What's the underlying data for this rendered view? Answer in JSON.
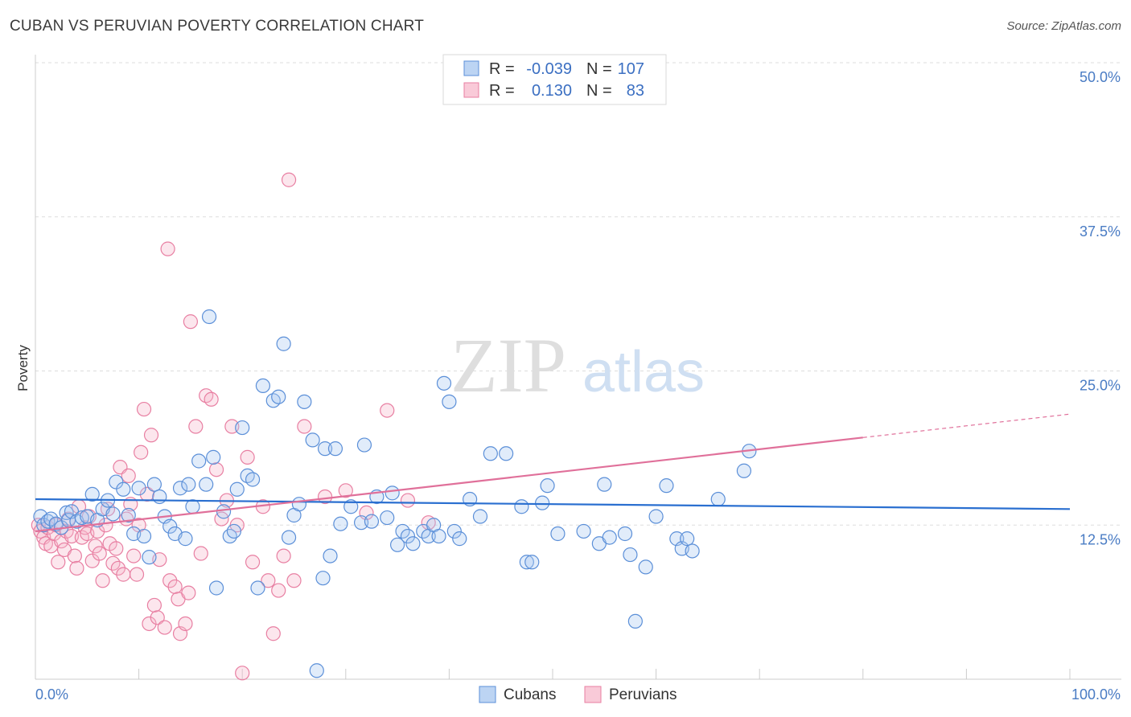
{
  "title": "CUBAN VS PERUVIAN POVERTY CORRELATION CHART",
  "source": "Source: ZipAtlas.com",
  "watermark": {
    "zip": "ZIP",
    "atlas": "atlas"
  },
  "colors": {
    "blue_fill": "#a8c8f0",
    "blue_stroke": "#5b8fd8",
    "blue_line": "#2a6fd0",
    "pink_fill": "#f5b8cb",
    "pink_stroke": "#e87fa2",
    "pink_line": "#e0709a",
    "grid": "#dddddd",
    "tick_label": "#4a7cc4"
  },
  "legend": {
    "rows": [
      {
        "r_label": "R =",
        "r_value": "-0.039",
        "n_label": "N =",
        "n_value": "107",
        "series": "Cubans"
      },
      {
        "r_label": "R =",
        "r_value": "0.130",
        "n_label": "N =",
        "n_value": "83",
        "series": "Peruvians"
      }
    ]
  },
  "chart_data": {
    "type": "scatter",
    "title": "CUBAN VS PERUVIAN POVERTY CORRELATION CHART",
    "xlabel": "",
    "ylabel": "Poverty",
    "xlim": [
      0,
      100
    ],
    "ylim": [
      0,
      50
    ],
    "y_ticks": [
      12.5,
      25.0,
      37.5,
      50.0
    ],
    "y_tick_labels": [
      "12.5%",
      "25.0%",
      "37.5%",
      "50.0%"
    ],
    "x_tick_labels": [
      "0.0%",
      "100.0%"
    ],
    "grid": true,
    "legend_position": "top-center",
    "series": [
      {
        "name": "Cubans",
        "r": -0.039,
        "n": 107,
        "trend": {
          "x": [
            0,
            100
          ],
          "y": [
            14.6,
            13.8
          ]
        },
        "points": [
          [
            0.5,
            13.2
          ],
          [
            0.8,
            12.5
          ],
          [
            1.2,
            12.8
          ],
          [
            1.5,
            13.0
          ],
          [
            2.0,
            12.6
          ],
          [
            2.5,
            12.3
          ],
          [
            3.0,
            13.5
          ],
          [
            3.2,
            12.9
          ],
          [
            3.5,
            13.6
          ],
          [
            4.0,
            12.8
          ],
          [
            4.5,
            13.1
          ],
          [
            5.0,
            13.2
          ],
          [
            5.5,
            15.0
          ],
          [
            6.0,
            12.9
          ],
          [
            6.5,
            13.8
          ],
          [
            7.0,
            14.5
          ],
          [
            7.5,
            13.4
          ],
          [
            7.8,
            16.0
          ],
          [
            8.5,
            15.4
          ],
          [
            9.0,
            13.3
          ],
          [
            9.5,
            11.8
          ],
          [
            10.0,
            15.5
          ],
          [
            10.5,
            11.6
          ],
          [
            11.0,
            9.9
          ],
          [
            11.5,
            15.8
          ],
          [
            12.0,
            14.8
          ],
          [
            12.5,
            13.2
          ],
          [
            13.0,
            12.4
          ],
          [
            13.5,
            11.8
          ],
          [
            14.0,
            15.5
          ],
          [
            14.5,
            11.4
          ],
          [
            14.8,
            15.8
          ],
          [
            15.2,
            14.0
          ],
          [
            15.8,
            17.7
          ],
          [
            16.5,
            15.8
          ],
          [
            16.8,
            29.4
          ],
          [
            17.2,
            18.0
          ],
          [
            17.5,
            7.4
          ],
          [
            18.2,
            13.6
          ],
          [
            18.8,
            11.6
          ],
          [
            19.2,
            12.0
          ],
          [
            19.5,
            15.4
          ],
          [
            20.0,
            20.4
          ],
          [
            20.5,
            16.5
          ],
          [
            21.0,
            16.2
          ],
          [
            21.5,
            7.4
          ],
          [
            22.0,
            23.8
          ],
          [
            23.0,
            22.6
          ],
          [
            23.5,
            22.9
          ],
          [
            24.0,
            27.2
          ],
          [
            24.5,
            11.5
          ],
          [
            25.0,
            13.3
          ],
          [
            25.5,
            14.2
          ],
          [
            26.0,
            22.5
          ],
          [
            26.8,
            19.4
          ],
          [
            27.2,
            0.7
          ],
          [
            27.8,
            8.2
          ],
          [
            28.0,
            18.7
          ],
          [
            28.5,
            10.0
          ],
          [
            29.0,
            18.7
          ],
          [
            29.5,
            12.6
          ],
          [
            30.5,
            14.0
          ],
          [
            31.5,
            12.7
          ],
          [
            31.8,
            19.0
          ],
          [
            32.5,
            12.8
          ],
          [
            33.0,
            14.8
          ],
          [
            34.0,
            13.1
          ],
          [
            34.5,
            15.1
          ],
          [
            35.0,
            10.9
          ],
          [
            35.5,
            12.0
          ],
          [
            36.0,
            11.6
          ],
          [
            36.5,
            11.0
          ],
          [
            37.5,
            12.0
          ],
          [
            38.0,
            11.6
          ],
          [
            38.5,
            12.5
          ],
          [
            39.0,
            11.6
          ],
          [
            39.5,
            24.0
          ],
          [
            40.0,
            22.5
          ],
          [
            40.5,
            12.0
          ],
          [
            41.0,
            11.4
          ],
          [
            42.0,
            14.6
          ],
          [
            43.0,
            13.2
          ],
          [
            44.0,
            18.3
          ],
          [
            45.5,
            18.3
          ],
          [
            47.0,
            14.0
          ],
          [
            47.5,
            9.5
          ],
          [
            48.0,
            9.5
          ],
          [
            49.0,
            14.3
          ],
          [
            49.5,
            15.7
          ],
          [
            50.5,
            11.8
          ],
          [
            53.0,
            12.0
          ],
          [
            54.5,
            11.0
          ],
          [
            55.0,
            15.8
          ],
          [
            55.5,
            11.5
          ],
          [
            57.0,
            11.8
          ],
          [
            57.5,
            10.1
          ],
          [
            58.0,
            4.7
          ],
          [
            59.0,
            9.1
          ],
          [
            60.0,
            13.2
          ],
          [
            61.0,
            15.7
          ],
          [
            62.0,
            11.4
          ],
          [
            62.5,
            10.6
          ],
          [
            63.0,
            11.4
          ],
          [
            63.5,
            10.4
          ],
          [
            66.0,
            14.6
          ],
          [
            68.5,
            16.9
          ],
          [
            69.0,
            18.5
          ]
        ]
      },
      {
        "name": "Peruvians",
        "r": 0.13,
        "n": 83,
        "trend": {
          "x": [
            0,
            80
          ],
          "y": [
            12.0,
            19.6
          ]
        },
        "trend_dashed": {
          "x": [
            80,
            100
          ],
          "y": [
            19.6,
            21.5
          ]
        },
        "points": [
          [
            0.3,
            12.5
          ],
          [
            0.5,
            12.0
          ],
          [
            0.8,
            11.5
          ],
          [
            1.0,
            11.0
          ],
          [
            1.2,
            12.3
          ],
          [
            1.5,
            10.8
          ],
          [
            1.8,
            11.8
          ],
          [
            2.0,
            12.5
          ],
          [
            2.2,
            9.5
          ],
          [
            2.5,
            11.2
          ],
          [
            2.8,
            10.5
          ],
          [
            3.0,
            12.0
          ],
          [
            3.2,
            13.0
          ],
          [
            3.5,
            11.6
          ],
          [
            3.8,
            10.0
          ],
          [
            4.0,
            9.0
          ],
          [
            4.2,
            14.0
          ],
          [
            4.5,
            11.5
          ],
          [
            4.8,
            12.3
          ],
          [
            5.0,
            11.8
          ],
          [
            5.2,
            13.2
          ],
          [
            5.5,
            9.6
          ],
          [
            5.8,
            10.8
          ],
          [
            6.0,
            12.0
          ],
          [
            6.2,
            10.2
          ],
          [
            6.5,
            8.0
          ],
          [
            6.8,
            12.5
          ],
          [
            7.0,
            13.8
          ],
          [
            7.2,
            11.0
          ],
          [
            7.5,
            9.4
          ],
          [
            7.8,
            10.6
          ],
          [
            8.0,
            9.0
          ],
          [
            8.2,
            17.2
          ],
          [
            8.5,
            8.5
          ],
          [
            8.8,
            13.0
          ],
          [
            9.0,
            16.5
          ],
          [
            9.2,
            14.2
          ],
          [
            9.5,
            10.0
          ],
          [
            9.8,
            8.5
          ],
          [
            10.0,
            12.5
          ],
          [
            10.2,
            18.4
          ],
          [
            10.5,
            21.9
          ],
          [
            10.8,
            15.0
          ],
          [
            11.0,
            4.5
          ],
          [
            11.2,
            19.8
          ],
          [
            11.5,
            6.0
          ],
          [
            11.8,
            5.0
          ],
          [
            12.0,
            9.7
          ],
          [
            12.5,
            4.2
          ],
          [
            12.8,
            34.9
          ],
          [
            13.0,
            8.0
          ],
          [
            13.5,
            7.5
          ],
          [
            13.8,
            6.5
          ],
          [
            14.0,
            3.7
          ],
          [
            14.5,
            4.5
          ],
          [
            14.8,
            7.0
          ],
          [
            15.0,
            29.0
          ],
          [
            15.5,
            20.5
          ],
          [
            16.0,
            10.2
          ],
          [
            16.5,
            23.0
          ],
          [
            17.0,
            22.7
          ],
          [
            17.5,
            17.0
          ],
          [
            18.0,
            13.0
          ],
          [
            18.5,
            14.5
          ],
          [
            19.0,
            20.5
          ],
          [
            19.5,
            12.5
          ],
          [
            20.0,
            0.5
          ],
          [
            20.5,
            18.0
          ],
          [
            21.0,
            9.5
          ],
          [
            22.0,
            14.0
          ],
          [
            22.5,
            8.0
          ],
          [
            23.0,
            3.7
          ],
          [
            23.5,
            7.2
          ],
          [
            24.0,
            10.0
          ],
          [
            24.5,
            40.5
          ],
          [
            25.0,
            8.0
          ],
          [
            26.0,
            20.5
          ],
          [
            28.0,
            14.8
          ],
          [
            30.0,
            15.3
          ],
          [
            32.0,
            13.5
          ],
          [
            34.0,
            21.8
          ],
          [
            36.0,
            14.5
          ],
          [
            38.0,
            12.7
          ]
        ]
      }
    ]
  },
  "bottom_legend": [
    "Cubans",
    "Peruvians"
  ]
}
